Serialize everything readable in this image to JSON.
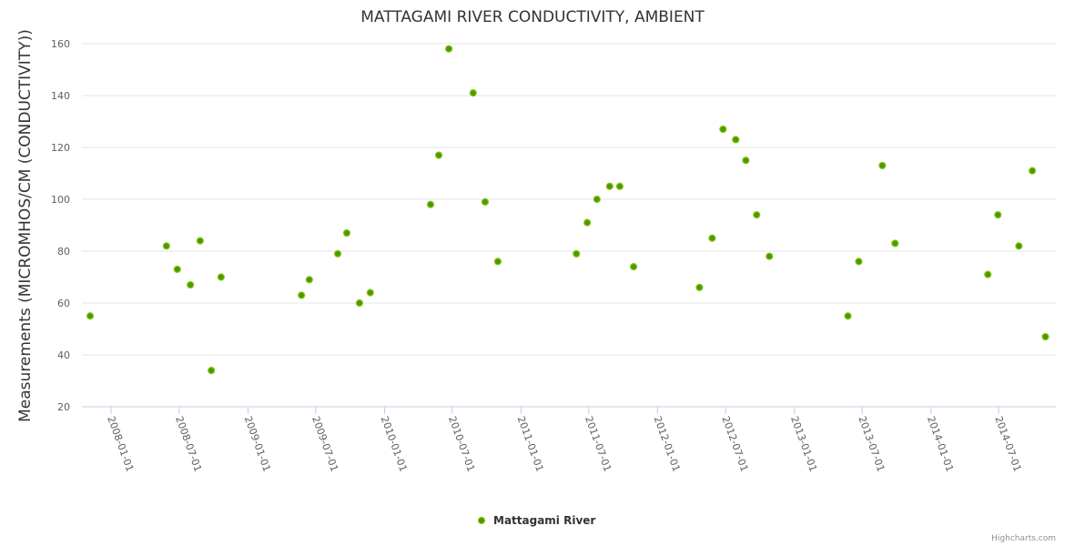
{
  "chart_data": {
    "type": "scatter",
    "title": "MATTAGAMI RIVER CONDUCTIVITY, AMBIENT",
    "xlabel": "",
    "ylabel": "Measurements (MICROMHOS/CM (CONDUCTIVITY))",
    "ylim": [
      20,
      160
    ],
    "yticks": [
      20,
      40,
      60,
      80,
      100,
      120,
      140,
      160
    ],
    "xlim": [
      "2007-10-15",
      "2014-12-01"
    ],
    "xticks": [
      "2008-01-01",
      "2008-07-01",
      "2009-01-01",
      "2009-07-01",
      "2010-01-01",
      "2010-07-01",
      "2011-01-01",
      "2011-07-01",
      "2012-01-01",
      "2012-07-01",
      "2013-01-01",
      "2013-07-01",
      "2014-01-01",
      "2014-07-01"
    ],
    "grid": true,
    "legend_position": "bottom-center",
    "series": [
      {
        "name": "Mattagami River",
        "color": "#4a9a00",
        "points": [
          [
            "2007-11-06",
            55
          ],
          [
            "2008-05-28",
            82
          ],
          [
            "2008-06-26",
            73
          ],
          [
            "2008-07-31",
            67
          ],
          [
            "2008-08-26",
            84
          ],
          [
            "2008-09-25",
            34
          ],
          [
            "2008-10-21",
            70
          ],
          [
            "2009-05-24",
            63
          ],
          [
            "2009-06-14",
            69
          ],
          [
            "2009-08-29",
            79
          ],
          [
            "2009-09-22",
            87
          ],
          [
            "2009-10-26",
            60
          ],
          [
            "2009-11-24",
            64
          ],
          [
            "2010-05-04",
            98
          ],
          [
            "2010-05-26",
            117
          ],
          [
            "2010-06-22",
            158
          ],
          [
            "2010-08-26",
            141
          ],
          [
            "2010-09-27",
            99
          ],
          [
            "2010-10-31",
            76
          ],
          [
            "2011-05-29",
            79
          ],
          [
            "2011-06-27",
            91
          ],
          [
            "2011-07-23",
            100
          ],
          [
            "2011-08-26",
            105
          ],
          [
            "2011-09-22",
            105
          ],
          [
            "2011-10-29",
            74
          ],
          [
            "2012-04-22",
            66
          ],
          [
            "2012-05-26",
            85
          ],
          [
            "2012-06-24",
            127
          ],
          [
            "2012-07-28",
            123
          ],
          [
            "2012-08-24",
            115
          ],
          [
            "2012-09-22",
            94
          ],
          [
            "2012-10-26",
            78
          ],
          [
            "2013-05-24",
            55
          ],
          [
            "2013-06-22",
            76
          ],
          [
            "2013-08-24",
            113
          ],
          [
            "2013-09-27",
            83
          ],
          [
            "2014-06-02",
            71
          ],
          [
            "2014-06-29",
            94
          ],
          [
            "2014-08-24",
            82
          ],
          [
            "2014-09-29",
            111
          ],
          [
            "2014-11-03",
            47
          ]
        ]
      }
    ]
  },
  "credits": "Highcharts.com"
}
